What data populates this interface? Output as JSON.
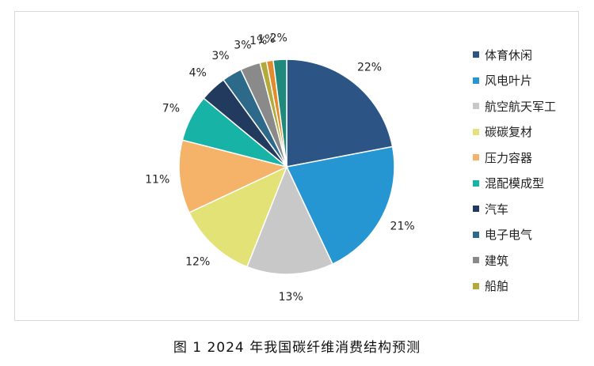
{
  "chart_data": {
    "type": "pie",
    "title": "",
    "legend_position": "right",
    "slices": [
      {
        "label": "体育休闲",
        "value": 22,
        "value_label": "22%",
        "color": "#2c5585"
      },
      {
        "label": "风电叶片",
        "value": 21,
        "value_label": "21%",
        "color": "#2596d1"
      },
      {
        "label": "航空航天军工",
        "value": 13,
        "value_label": "13%",
        "color": "#c8c8c8"
      },
      {
        "label": "碳碳复材",
        "value": 12,
        "value_label": "12%",
        "color": "#e2e276"
      },
      {
        "label": "压力容器",
        "value": 11,
        "value_label": "11%",
        "color": "#f5b36a"
      },
      {
        "label": "混配模成型",
        "value": 7,
        "value_label": "7%",
        "color": "#16b3a6"
      },
      {
        "label": "汽车",
        "value": 4,
        "value_label": "4%",
        "color": "#223a5e"
      },
      {
        "label": "电子电气",
        "value": 3,
        "value_label": "3%",
        "color": "#2d6a8a"
      },
      {
        "label": "建筑",
        "value": 3,
        "value_label": "3%",
        "color": "#8a8a8a"
      },
      {
        "label": "船舶",
        "value": 1,
        "value_label": "1%",
        "color": "#b4aa3c"
      },
      {
        "label": "",
        "value": 1,
        "value_label": "1%",
        "color": "#e48a2e"
      },
      {
        "label": "",
        "value": 2,
        "value_label": "2%",
        "color": "#1f8a7c"
      }
    ]
  },
  "caption": "图 1 2024 年我国碳纤维消费结构预测"
}
